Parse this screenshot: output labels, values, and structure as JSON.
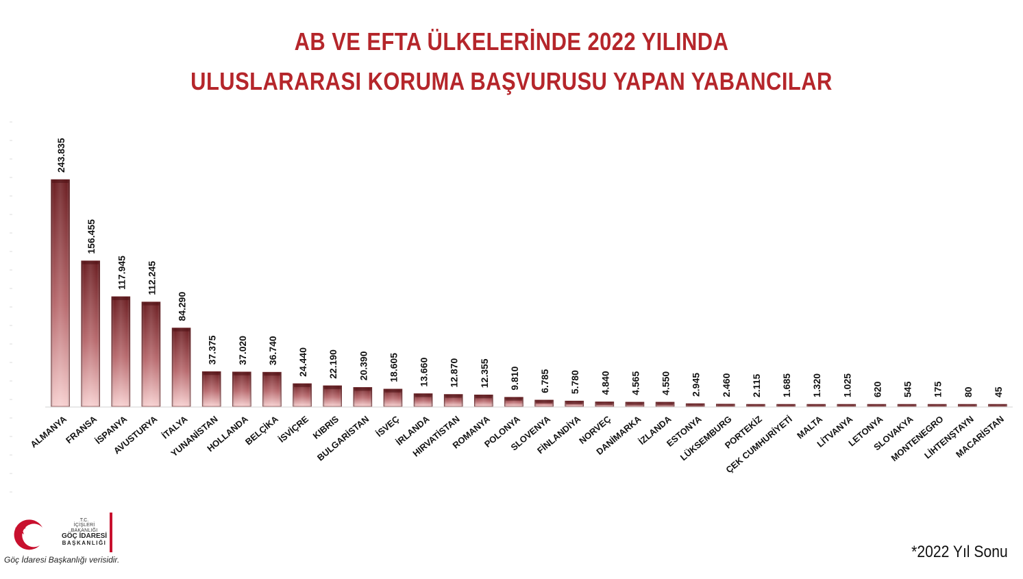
{
  "title": {
    "line1": "AB VE EFTA ÜLKELERİNDE 2022 YILINDA",
    "line2": "ULUSLARARASI KORUMA BAŞVURUSU YAPAN YABANCILAR"
  },
  "footnote": "*2022 Yıl Sonu",
  "logo": {
    "tc": "T.C.",
    "ministry": "İÇİŞLERİ BAKANLIĞI",
    "name": "GÖÇ İDARESİ",
    "sub": "BAŞKANLIĞI"
  },
  "source": "Göç İdaresi Başkanlığı verisidir.",
  "colors": {
    "title": "#b5262b",
    "bar_dark": "#6b1e22",
    "bar_light": "#f6cfcf",
    "accent": "#c8102e"
  },
  "chart_data": {
    "type": "bar",
    "title": "AB VE EFTA ÜLKELERİNDE 2022 YILINDA ULUSLARARASI KORUMA BAŞVURUSU YAPAN YABANCILAR",
    "xlabel": "",
    "ylabel": "",
    "ylim": [
      0,
      250000
    ],
    "grid": false,
    "categories": [
      "ALMANYA",
      "FRANSA",
      "İSPANYA",
      "AVUSTURYA",
      "İTALYA",
      "YUNANİSTAN",
      "HOLLANDA",
      "BELÇİKA",
      "İSVİÇRE",
      "KIBRIS",
      "BULGARİSTAN",
      "İSVEÇ",
      "İRLANDA",
      "HIRVATİSTAN",
      "ROMANYA",
      "POLONYA",
      "SLOVENYA",
      "FİNLANDİYA",
      "NORVEÇ",
      "DANİMARKA",
      "İZLANDA",
      "ESTONYA",
      "LÜKSEMBURG",
      "PORTEKİZ",
      "ÇEK CUMHURİYETİ",
      "MALTA",
      "LİTVANYA",
      "LETONYA",
      "SLOVAKYA",
      "MONTENEGRO",
      "LİHTENŞTAYN",
      "MACARİSTAN"
    ],
    "values": [
      243835,
      156455,
      117945,
      112245,
      84290,
      37375,
      37020,
      36740,
      24440,
      22190,
      20390,
      18605,
      13660,
      12870,
      12355,
      9810,
      6785,
      5780,
      4840,
      4565,
      4550,
      2945,
      2460,
      2115,
      1685,
      1320,
      1025,
      620,
      545,
      175,
      80,
      45
    ],
    "value_labels": [
      "243.835",
      "156.455",
      "117.945",
      "112.245",
      "84.290",
      "37.375",
      "37.020",
      "36.740",
      "24.440",
      "22.190",
      "20.390",
      "18.605",
      "13.660",
      "12.870",
      "12.355",
      "9.810",
      "6.785",
      "5.780",
      "4.840",
      "4.565",
      "4.550",
      "2.945",
      "2.460",
      "2.115",
      "1.685",
      "1.320",
      "1.025",
      "620",
      "545",
      "175",
      "80",
      "45"
    ]
  }
}
